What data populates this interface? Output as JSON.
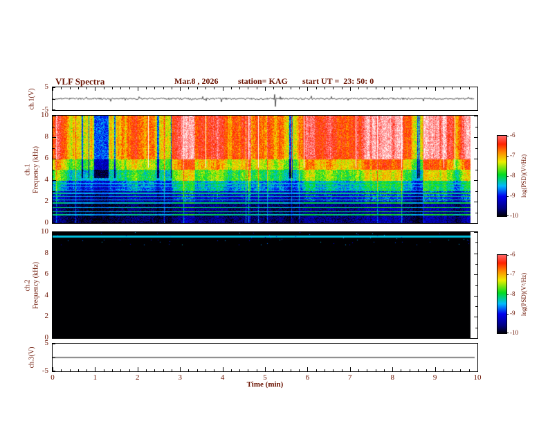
{
  "header": {
    "title": "VLF Spectra",
    "date": "Mar.8 , 2026",
    "station": "station= KAG",
    "start_ut": "start UT =  23: 50: 0"
  },
  "colors": {
    "text": "#6a1200",
    "frame": "#000000",
    "background": "#ffffff"
  },
  "chart_data": {
    "type": "heatmap",
    "title": "VLF Spectra",
    "time_axis": {
      "label": "Time (min)",
      "range": [
        0,
        10
      ],
      "ticks": [
        "0",
        "1",
        "2",
        "3",
        "4",
        "5",
        "6",
        "7",
        "8",
        "9",
        "10"
      ],
      "minor_step": 0.2,
      "data_end_min": 9.83
    },
    "colormap": {
      "name": "jet-like",
      "range": [
        -10,
        -6
      ],
      "over_color": "#ffffff",
      "stops": [
        {
          "t": 0.0,
          "c": "#000002"
        },
        {
          "t": 0.1,
          "c": "#000080"
        },
        {
          "t": 0.25,
          "c": "#0000ee"
        },
        {
          "t": 0.38,
          "c": "#00bbff"
        },
        {
          "t": 0.52,
          "c": "#00dd22"
        },
        {
          "t": 0.68,
          "c": "#eeee00"
        },
        {
          "t": 0.8,
          "c": "#ff8800"
        },
        {
          "t": 0.9,
          "c": "#ff2200"
        },
        {
          "t": 1.0,
          "c": "#ff6666"
        }
      ]
    },
    "panels": [
      {
        "id": "ch1-waveform",
        "type": "line",
        "ylabel": "ch.1(V)",
        "ylim": [
          -5,
          5
        ],
        "yticks": [
          "5",
          "-5"
        ],
        "signal": {
          "baseline_v": 0,
          "noise_amp_v": 0.35,
          "spike_prob": 0.04,
          "spike_amp_v": 1.2,
          "big_spike": {
            "t_min": 5.25,
            "amp_v": -3.4
          }
        }
      },
      {
        "id": "ch1-spectrogram",
        "type": "heatmap",
        "ylabel_lines": [
          "ch.1",
          "Frequency (kHz)"
        ],
        "ylim": [
          0,
          10
        ],
        "yticks": [
          "10",
          "8",
          "6",
          "4",
          "2",
          "0"
        ],
        "bands": [
          {
            "f_min": 6,
            "f_max": 10,
            "base": -6.7,
            "var": 1.1
          },
          {
            "f_min": 5,
            "f_max": 6,
            "base": -7.35,
            "var": 0.9
          },
          {
            "f_min": 4,
            "f_max": 5,
            "base": -7.95,
            "var": 0.85
          },
          {
            "f_min": 3,
            "f_max": 4,
            "base": -8.65,
            "var": 0.7
          },
          {
            "f_min": 2,
            "f_max": 3,
            "base": -9.25,
            "var": 0.5
          },
          {
            "f_min": 0,
            "f_max": 2,
            "base": -9.7,
            "var": 0.35
          }
        ],
        "stripe_freqs": [
          0.8,
          1.1,
          1.5,
          1.9,
          2.2,
          2.5,
          2.8,
          3.1,
          3.4,
          3.7,
          4.1,
          4.4
        ],
        "colorbar": {
          "label": "log(PSD)(V²/Hz)",
          "ticks": [
            "-6",
            "-7",
            "-8",
            "-9",
            "-10"
          ]
        }
      },
      {
        "id": "ch2-spectrogram",
        "type": "heatmap",
        "ylabel_lines": [
          "ch.2",
          "Frequency (kHz)"
        ],
        "ylim": [
          0,
          10
        ],
        "yticks": [
          "10",
          "8",
          "6",
          "4",
          "2",
          "0"
        ],
        "floor": -10,
        "lines": [
          {
            "f": 9.62,
            "halfwidth": 0.1,
            "value": -8.4
          }
        ],
        "speckle_prob": 0.004,
        "colorbar": {
          "label": "log(PSD)(V²/Hz)",
          "ticks": [
            "-6",
            "-7",
            "-8",
            "-9",
            "-10"
          ]
        }
      },
      {
        "id": "ch3-waveform",
        "type": "line",
        "ylabel": "ch.3(V)",
        "ylim": [
          -5,
          5
        ],
        "yticks": [
          "5",
          "-5"
        ],
        "signal": {
          "baseline_v": 0,
          "flat": true
        }
      }
    ]
  }
}
